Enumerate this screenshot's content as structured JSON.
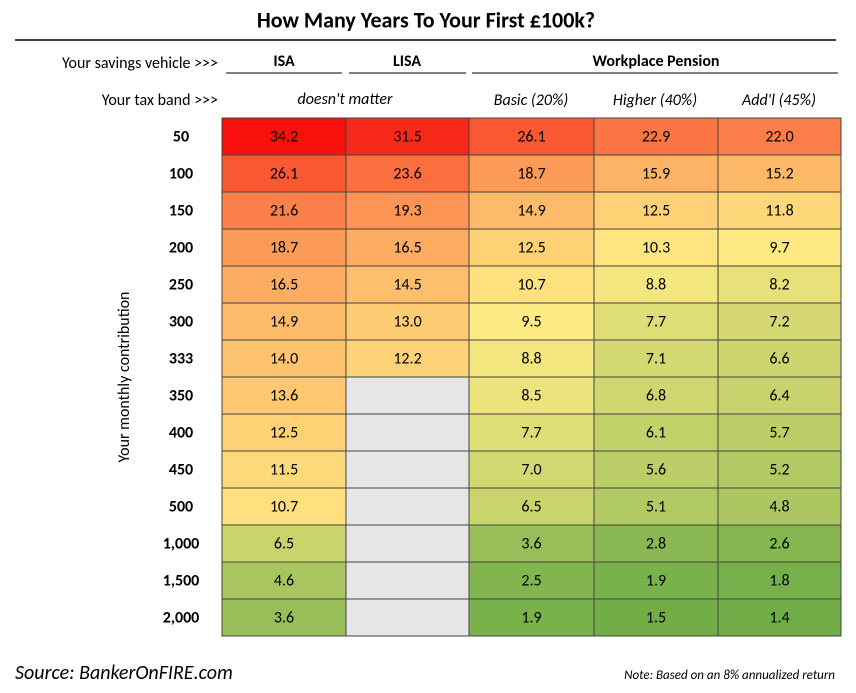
{
  "title": "How Many Years To Your First £100k?",
  "header": {
    "vehicle_label": "Your savings vehicle >>>",
    "vehicles": [
      "ISA",
      "LISA",
      "Workplace Pension"
    ],
    "tax_label": "Your tax band >>>",
    "tax_bands": [
      "doesn't matter",
      "Basic (20%)",
      "Higher (40%)",
      "Add'l (45%)"
    ]
  },
  "y_label": "Your monthly contribution",
  "table": {
    "rows": [
      {
        "label": "50",
        "cells": [
          "34.2",
          "31.5",
          "26.1",
          "22.9",
          "22.0"
        ]
      },
      {
        "label": "100",
        "cells": [
          "26.1",
          "23.6",
          "18.7",
          "15.9",
          "15.2"
        ]
      },
      {
        "label": "150",
        "cells": [
          "21.6",
          "19.3",
          "14.9",
          "12.5",
          "11.8"
        ]
      },
      {
        "label": "200",
        "cells": [
          "18.7",
          "16.5",
          "12.5",
          "10.3",
          "9.7"
        ]
      },
      {
        "label": "250",
        "cells": [
          "16.5",
          "14.5",
          "10.7",
          "8.8",
          "8.2"
        ]
      },
      {
        "label": "300",
        "cells": [
          "14.9",
          "13.0",
          "9.5",
          "7.7",
          "7.2"
        ]
      },
      {
        "label": "333",
        "cells": [
          "14.0",
          "12.2",
          "8.8",
          "7.1",
          "6.6"
        ]
      },
      {
        "label": "350",
        "cells": [
          "13.6",
          null,
          "8.5",
          "6.8",
          "6.4"
        ]
      },
      {
        "label": "400",
        "cells": [
          "12.5",
          null,
          "7.7",
          "6.1",
          "5.7"
        ]
      },
      {
        "label": "450",
        "cells": [
          "11.5",
          null,
          "7.0",
          "5.6",
          "5.2"
        ]
      },
      {
        "label": "500",
        "cells": [
          "10.7",
          null,
          "6.5",
          "5.1",
          "4.8"
        ]
      },
      {
        "label": "1,000",
        "cells": [
          "6.5",
          null,
          "3.6",
          "2.8",
          "2.6"
        ]
      },
      {
        "label": "1,500",
        "cells": [
          "4.6",
          null,
          "2.5",
          "1.9",
          "1.8"
        ]
      },
      {
        "label": "2,000",
        "cells": [
          "3.6",
          null,
          "1.9",
          "1.5",
          "1.4"
        ]
      }
    ]
  },
  "source": "Source: BankerOnFIRE.com",
  "note": "Note: Based on an 8% annualized return"
}
